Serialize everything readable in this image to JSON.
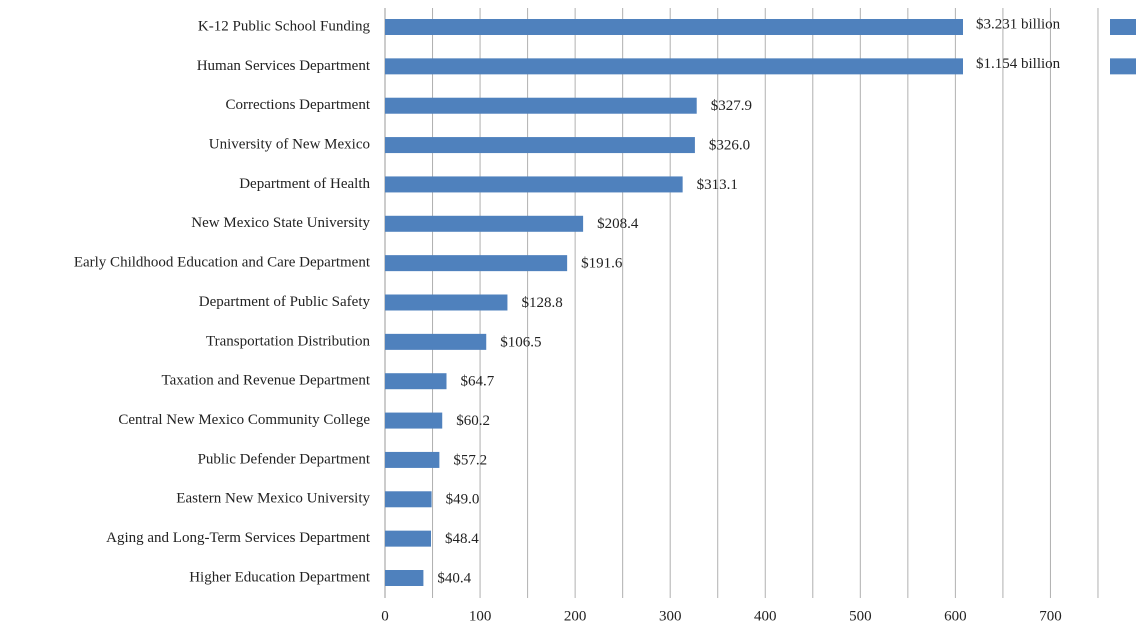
{
  "chart_data": {
    "type": "hbar",
    "categories": [
      "K-12 Public School Funding",
      "Human Services Department",
      "Corrections Department",
      "University of New Mexico",
      "Department of Health",
      "New Mexico State University",
      "Early Childhood Education and Care Department",
      "Department of Public Safety",
      "Transportation Distribution",
      "Taxation and Revenue Department",
      "Central New Mexico Community College",
      "Public Defender Department",
      "Eastern New Mexico University",
      "Aging and Long-Term Services Department",
      "Higher Education Department"
    ],
    "values": [
      3231,
      1154,
      327.9,
      326.0,
      313.1,
      208.4,
      191.6,
      128.8,
      106.5,
      64.7,
      60.2,
      57.2,
      49.0,
      48.4,
      40.4
    ],
    "value_labels": [
      "$3.231 billion",
      "$1.154 billion",
      "$327.9",
      "$326.0",
      "$313.1",
      "$208.4",
      "$191.6",
      "$128.8",
      "$106.5",
      "$64.7",
      "$60.2",
      "$57.2",
      "$49.0",
      "$48.4",
      "$40.4"
    ],
    "color": "#4f81bd",
    "xlim": [
      0,
      790
    ],
    "xticks": [
      0,
      100,
      200,
      300,
      400,
      500,
      600,
      700
    ],
    "minor_xticks": [
      50,
      150,
      250,
      350,
      450,
      550,
      650,
      750
    ],
    "grid": true
  }
}
